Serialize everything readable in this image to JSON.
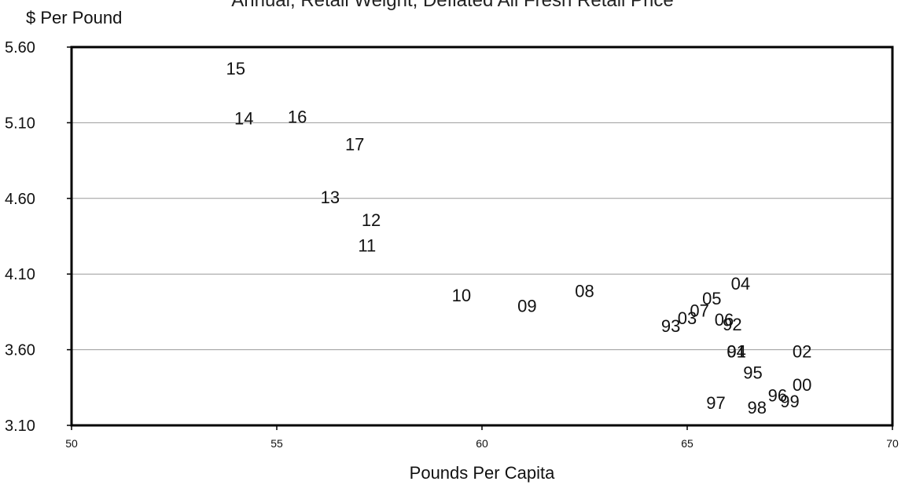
{
  "chart_data": {
    "type": "scatter",
    "title": "Annual, Retail Weight, Deflated All Fresh Retail Price",
    "ylabel": "$ Per Pound",
    "xlabel": "Pounds Per Capita",
    "xlim": [
      50,
      70
    ],
    "ylim": [
      3.1,
      5.6
    ],
    "x_ticks": [
      "50",
      "55",
      "60",
      "65",
      "70"
    ],
    "y_ticks": [
      "3.10",
      "3.60",
      "4.10",
      "4.60",
      "5.10",
      "5.60"
    ],
    "grid": "horizontal",
    "points": [
      {
        "label": "15",
        "x": 54.0,
        "y": 5.46
      },
      {
        "label": "14",
        "x": 54.2,
        "y": 5.13
      },
      {
        "label": "16",
        "x": 55.5,
        "y": 5.14
      },
      {
        "label": "17",
        "x": 56.9,
        "y": 4.96
      },
      {
        "label": "13",
        "x": 56.3,
        "y": 4.61
      },
      {
        "label": "12",
        "x": 57.3,
        "y": 4.46
      },
      {
        "label": "11",
        "x": 57.2,
        "y": 4.29
      },
      {
        "label": "10",
        "x": 59.5,
        "y": 3.96
      },
      {
        "label": "09",
        "x": 61.1,
        "y": 3.89
      },
      {
        "label": "08",
        "x": 62.5,
        "y": 3.99
      },
      {
        "label": "04",
        "x": 66.3,
        "y": 4.04
      },
      {
        "label": "05",
        "x": 65.6,
        "y": 3.94
      },
      {
        "label": "07",
        "x": 65.3,
        "y": 3.86
      },
      {
        "label": "03",
        "x": 65.0,
        "y": 3.81
      },
      {
        "label": "93",
        "x": 64.6,
        "y": 3.76
      },
      {
        "label": "06",
        "x": 65.9,
        "y": 3.8
      },
      {
        "label": "92",
        "x": 66.1,
        "y": 3.77
      },
      {
        "label": "01",
        "x": 66.2,
        "y": 3.59
      },
      {
        "label": "94",
        "x": 66.2,
        "y": 3.59
      },
      {
        "label": "02",
        "x": 67.8,
        "y": 3.59
      },
      {
        "label": "95",
        "x": 66.6,
        "y": 3.45
      },
      {
        "label": "00",
        "x": 67.8,
        "y": 3.37
      },
      {
        "label": "96",
        "x": 67.2,
        "y": 3.3
      },
      {
        "label": "99",
        "x": 67.5,
        "y": 3.26
      },
      {
        "label": "97",
        "x": 65.7,
        "y": 3.25
      },
      {
        "label": "98",
        "x": 66.7,
        "y": 3.22
      }
    ]
  }
}
